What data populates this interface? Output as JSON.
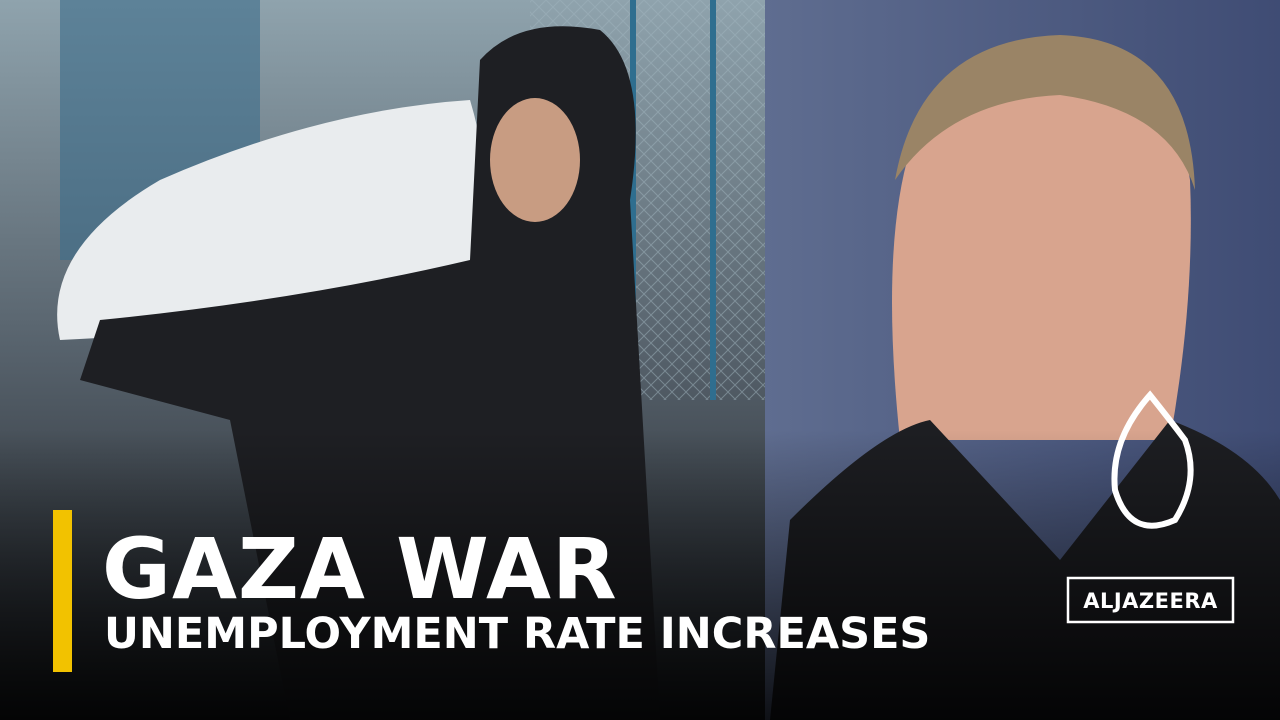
{
  "headline": {
    "title": "GAZA WAR",
    "subtitle": "UNEMPLOYMENT RATE INCREASES"
  },
  "logo": {
    "text": "ALJAZEERA"
  }
}
